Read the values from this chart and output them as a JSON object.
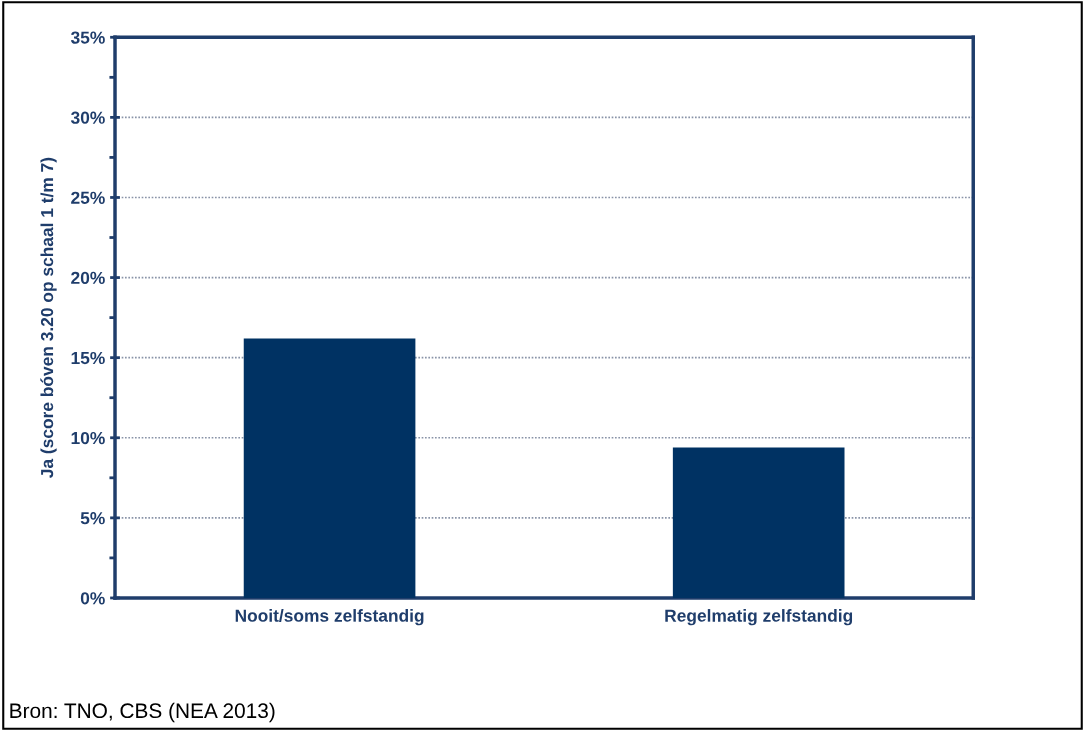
{
  "chart_data": {
    "type": "bar",
    "ylabel": "Ja (score bóven 3.20 op schaal 1 t/m 7)",
    "categories": [
      "Nooit/soms zelfstandig",
      "Regelmatig zelfstandig"
    ],
    "values": [
      16.2,
      9.4
    ],
    "color": "#003263",
    "ylim": [
      0,
      35
    ],
    "yticks": [
      {
        "value": 0,
        "label": "0%"
      },
      {
        "value": 2.5,
        "label": null
      },
      {
        "value": 5,
        "label": "5%"
      },
      {
        "value": 7.5,
        "label": null
      },
      {
        "value": 10,
        "label": "10%"
      },
      {
        "value": 12.5,
        "label": null
      },
      {
        "value": 15,
        "label": "15%"
      },
      {
        "value": 17.5,
        "label": null
      },
      {
        "value": 20,
        "label": "20%"
      },
      {
        "value": 22.5,
        "label": null
      },
      {
        "value": 25,
        "label": "25%"
      },
      {
        "value": 27.5,
        "label": null
      },
      {
        "value": 30,
        "label": "30%"
      },
      {
        "value": 32.5,
        "label": null
      },
      {
        "value": 35,
        "label": "35%"
      }
    ],
    "grid": "y",
    "annotations": [
      "Bron: TNO, CBS (NEA 2013)"
    ]
  }
}
